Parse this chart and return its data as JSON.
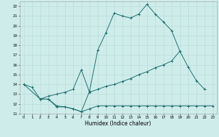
{
  "xlabel": "Humidex (Indice chaleur)",
  "bg_color": "#ceecea",
  "grid_color": "#b8dbd9",
  "line_color": "#1a6b6b",
  "xlim": [
    -0.5,
    23.5
  ],
  "ylim": [
    11,
    22.5
  ],
  "yticks": [
    11,
    12,
    13,
    14,
    15,
    16,
    17,
    18,
    19,
    20,
    21,
    22
  ],
  "xticks": [
    0,
    1,
    2,
    3,
    4,
    5,
    6,
    7,
    8,
    9,
    10,
    11,
    12,
    13,
    14,
    15,
    16,
    17,
    18,
    19,
    20,
    21,
    22,
    23
  ],
  "line1_x": [
    0,
    1,
    2,
    3,
    4,
    5,
    6,
    7,
    8,
    9,
    10,
    11,
    12,
    13,
    14,
    15,
    16,
    17,
    18,
    19,
    20,
    21,
    22
  ],
  "line1_y": [
    14.0,
    13.7,
    12.5,
    12.5,
    11.7,
    11.7,
    11.5,
    11.2,
    13.3,
    17.5,
    19.3,
    21.3,
    21.0,
    20.8,
    21.2,
    22.2,
    21.2,
    20.4,
    19.5,
    17.4,
    15.8,
    14.4,
    13.5
  ],
  "line2_x": [
    0,
    2,
    3,
    4,
    5,
    6,
    7,
    8,
    9,
    10,
    11,
    12,
    13,
    14,
    15,
    16,
    17,
    18,
    19
  ],
  "line2_y": [
    14.0,
    12.5,
    12.8,
    13.0,
    13.2,
    13.5,
    15.5,
    13.2,
    13.5,
    13.8,
    14.0,
    14.3,
    14.6,
    15.0,
    15.3,
    15.7,
    16.0,
    16.4,
    17.4
  ],
  "line3_x": [
    2,
    3,
    4,
    5,
    6,
    7,
    8,
    9,
    10,
    11,
    12,
    13,
    14,
    15,
    16,
    17,
    18,
    19,
    20,
    21,
    22,
    23
  ],
  "line3_y": [
    12.5,
    12.5,
    11.8,
    11.7,
    11.5,
    11.2,
    11.5,
    11.8,
    11.8,
    11.8,
    11.8,
    11.8,
    11.8,
    11.8,
    11.8,
    11.8,
    11.8,
    11.8,
    11.8,
    11.8,
    11.8,
    11.8
  ]
}
